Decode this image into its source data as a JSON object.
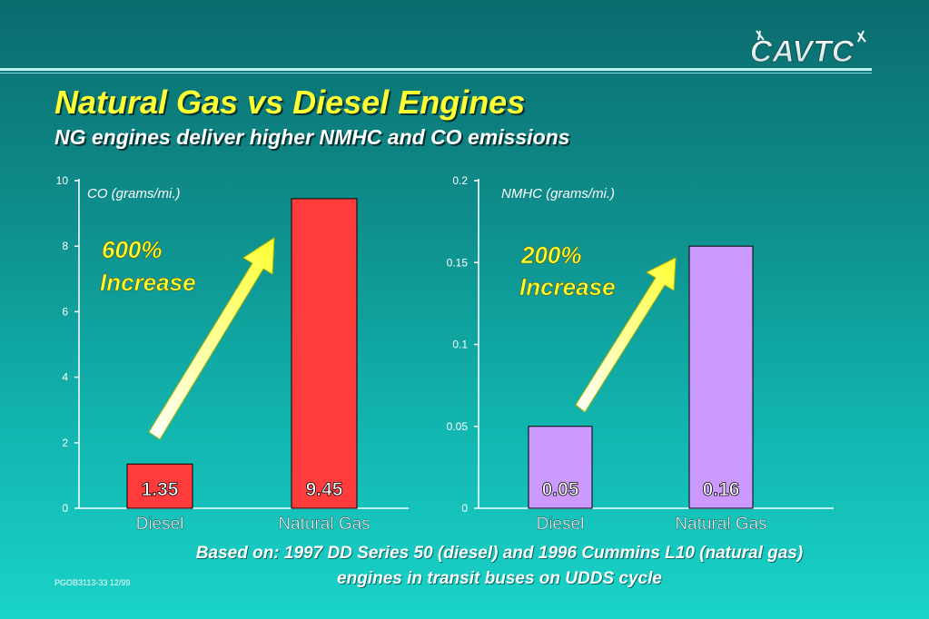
{
  "header": {
    "title": "Natural Gas vs Diesel Engines",
    "subtitle": "NG engines deliver higher NMHC and CO emissions",
    "logo_text": "CAVTC"
  },
  "colors": {
    "co_bar": "#ff3b3b",
    "nmhc_bar": "#cc99ff",
    "title_yellow": "#ffff33"
  },
  "chart_data": [
    {
      "type": "bar",
      "title": "CO (grams/mi.)",
      "categories": [
        "Diesel",
        "Natural Gas"
      ],
      "values": [
        1.35,
        9.45
      ],
      "value_labels": [
        "1.35",
        "9.45"
      ],
      "ylim": [
        0,
        10
      ],
      "yticks": [
        0,
        2,
        4,
        6,
        8,
        10
      ],
      "ytick_labels": [
        "0",
        "2",
        "4",
        "6",
        "8",
        "10"
      ],
      "annotation": {
        "line1": "600%",
        "line2": "Increase"
      }
    },
    {
      "type": "bar",
      "title": "NMHC (grams/mi.)",
      "categories": [
        "Diesel",
        "Natural Gas"
      ],
      "values": [
        0.05,
        0.16
      ],
      "value_labels": [
        "0.05",
        "0.16"
      ],
      "ylim": [
        0,
        0.2
      ],
      "yticks": [
        0,
        0.05,
        0.1,
        0.15,
        0.2
      ],
      "ytick_labels": [
        "0",
        "0.05",
        "0.1",
        "0.15",
        "0.2"
      ],
      "annotation": {
        "line1": "200%",
        "line2": "Increase"
      }
    }
  ],
  "footnote": {
    "line1": "Based on: 1997 DD Series 50 (diesel) and 1996 Cummins L10 (natural gas)",
    "line2": "engines in transit buses on UDDS cycle"
  },
  "doc_code": "PGOB3113-33 12/99"
}
